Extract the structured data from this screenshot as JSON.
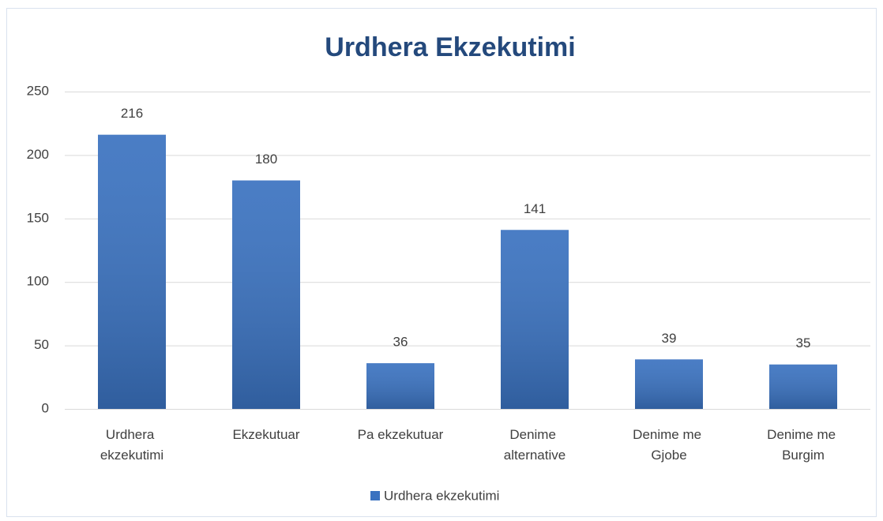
{
  "chart_data": {
    "type": "bar",
    "title": "Urdhera Ekzekutimi",
    "categories": [
      "Urdhera ekzekutimi",
      "Ekzekutuar",
      "Pa ekzekutuar",
      "Denime alternative",
      "Denime me Gjobe",
      "Denime me Burgim"
    ],
    "series": [
      {
        "name": "Urdhera ekzekutimi",
        "color": "#3a72c0",
        "values": [
          216,
          180,
          36,
          141,
          39,
          35
        ]
      }
    ],
    "ylim": [
      0,
      250
    ],
    "yticks": [
      0,
      50,
      100,
      150,
      200,
      250
    ],
    "grid": true,
    "legend": "bottom"
  }
}
